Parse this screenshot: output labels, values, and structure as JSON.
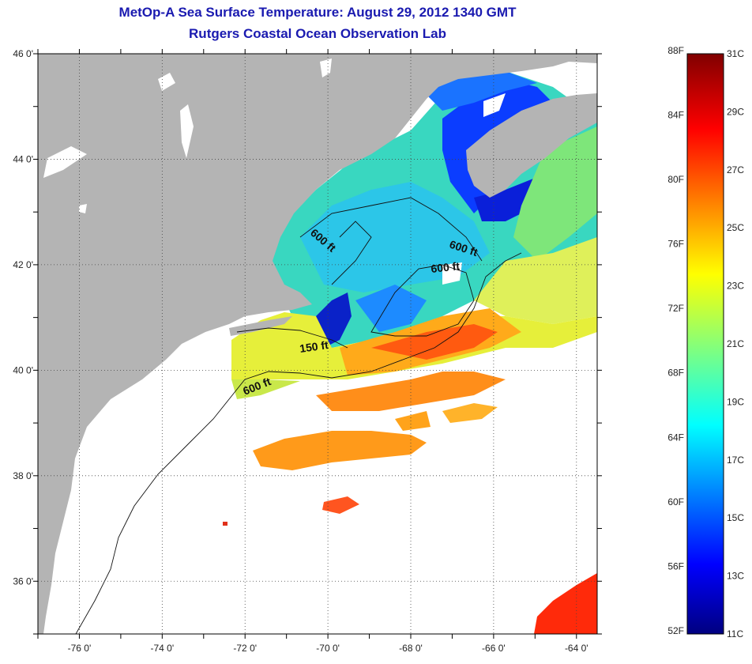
{
  "title": {
    "line1": "MetOp-A Sea Surface Temperature:  August 29, 2012 1340 GMT",
    "line2": "Rutgers Coastal Ocean Observation Lab"
  },
  "map": {
    "lon_ticks": [
      "-76 0'",
      "-74 0'",
      "-72 0'",
      "-70 0'",
      "-68 0'",
      "-66 0'",
      "-64 0'"
    ],
    "lat_ticks": [
      "46 0'",
      "44 0'",
      "42 0'",
      "40 0'",
      "38 0'",
      "36 0'"
    ],
    "lon_range": [
      -77,
      -63.5
    ],
    "lat_range": [
      35,
      46
    ],
    "grid": "dotted",
    "land_color": "#b4b4b4",
    "contour_labels": [
      "600 ft",
      "600 ft",
      "600 ft",
      "150 ft",
      "600 ft"
    ]
  },
  "colorbar": {
    "fahrenheit_labels": [
      "88F",
      "84F",
      "80F",
      "76F",
      "72F",
      "68F",
      "64F",
      "60F",
      "56F",
      "52F"
    ],
    "celsius_labels": [
      "31C",
      "29C",
      "27C",
      "25C",
      "23C",
      "21C",
      "19C",
      "17C",
      "15C",
      "13C",
      "11C"
    ],
    "range_c": [
      11,
      31
    ],
    "colormap": "jet"
  }
}
